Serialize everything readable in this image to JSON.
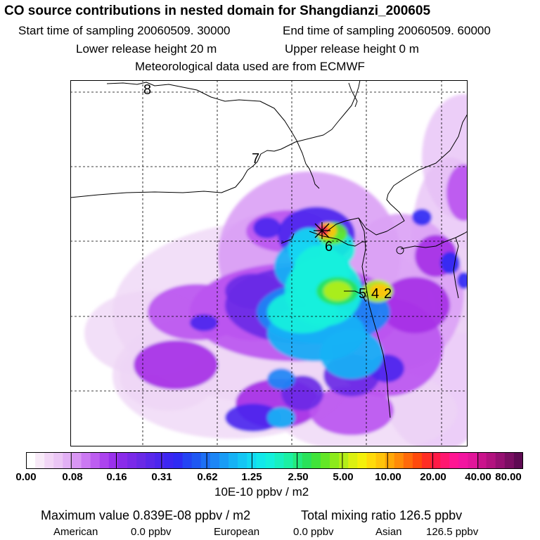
{
  "header": {
    "title": "CO  source contributions in nested domain for Shangdianzi_200605",
    "start": "Start time of sampling 20060509. 30000",
    "end": "End time of sampling 20060509. 60000",
    "lower": "Lower release height   20 m",
    "upper": "Upper release height    0 m",
    "met": "Meteorological data used are from ECMWF"
  },
  "map": {
    "contour_labels": [
      "8",
      "7",
      "6",
      "5",
      "4",
      "2"
    ],
    "station_marker": "sampling-site-marker",
    "colors": [
      "#ffffff",
      "#f4e6f8",
      "#eed4f6",
      "#e6bef6",
      "#dba2f5",
      "#cd7ff3",
      "#bb55f0",
      "#a62fe6",
      "#8a2cea",
      "#6a2ae6",
      "#4c26ee",
      "#2f2bf3",
      "#1f58f2",
      "#1d86f5",
      "#16b2f5",
      "#12d9f2",
      "#14f0dc",
      "#1cf0a3",
      "#2ae25a",
      "#63e626",
      "#b4ee18",
      "#f4f00a",
      "#ffc40a",
      "#ff8b08",
      "#ff4a0c",
      "#ff1a46",
      "#ff1593",
      "#e2159a",
      "#b2127f"
    ]
  },
  "colorbar": {
    "colors": [
      "#ffffff",
      "#f8eaf8",
      "#f2d6f6",
      "#ebc6f5",
      "#e2b0f5",
      "#d996f4",
      "#cb79f2",
      "#bd5ef0",
      "#ac44ee",
      "#9a31ec",
      "#8a2cea",
      "#7a2ae8",
      "#6a2ae6",
      "#5a28ea",
      "#4c26ee",
      "#3c26f1",
      "#2f2bf3",
      "#2444f3",
      "#1f58f2",
      "#1e70f4",
      "#1d86f5",
      "#199cf5",
      "#16b2f5",
      "#14c6f4",
      "#12d9f2",
      "#12e8ea",
      "#14f0dc",
      "#18f0c0",
      "#1cf0a3",
      "#24ea7e",
      "#2ae25a",
      "#40e43a",
      "#63e626",
      "#8cea1c",
      "#b4ee18",
      "#dcf010",
      "#f4f00a",
      "#ffda0a",
      "#ffc40a",
      "#ffa808",
      "#ff8b08",
      "#ff6a0a",
      "#ff4a0c",
      "#ff2e24",
      "#ff1a46",
      "#ff1870",
      "#ff1593",
      "#f215a0",
      "#e2159a",
      "#ca138c",
      "#b2127f",
      "#961072",
      "#7a0e62",
      "#5e0a52"
    ],
    "ticks": [
      "0.00",
      "0.08",
      "0.16",
      "0.31",
      "0.62",
      "1.25",
      "2.50",
      "5.00",
      "10.00",
      "20.00",
      "40.00",
      "80.00"
    ],
    "unit": "10E-10 ppbv / m2"
  },
  "summary": {
    "max_label": "Maximum value  0.839E-08 ppbv / m2",
    "total_label": "Total mixing ratio      126.5 ppbv",
    "regions": [
      {
        "name": "American",
        "value": "0.0 ppbv"
      },
      {
        "name": "European",
        "value": "0.0 ppbv"
      },
      {
        "name": "Asian",
        "value": "126.5 ppbv"
      }
    ]
  }
}
